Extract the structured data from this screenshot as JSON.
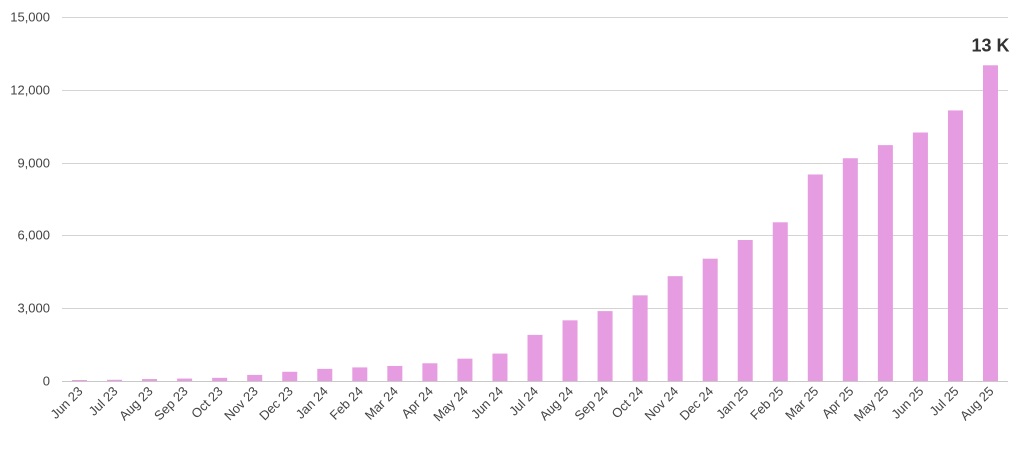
{
  "chart_data": {
    "type": "bar",
    "title": "",
    "xlabel": "",
    "ylabel": "",
    "ylim": [
      0,
      15000
    ],
    "yticks": [
      0,
      3000,
      6000,
      9000,
      12000,
      15000
    ],
    "ytick_labels": [
      "0",
      "3,000",
      "6,000",
      "9,000",
      "12,000",
      "15,000"
    ],
    "grid": true,
    "legend": "none",
    "bar_color": "#e59ce0",
    "categories": [
      "Jun 23",
      "Jul 23",
      "Aug 23",
      "Sep 23",
      "Oct 23",
      "Nov 23",
      "Dec 23",
      "Jan 24",
      "Feb 24",
      "Mar 24",
      "Apr 24",
      "May 24",
      "Jun 24",
      "Jul 24",
      "Aug 24",
      "Sep 24",
      "Oct 24",
      "Nov 24",
      "Dec 24",
      "Jan 25",
      "Feb 25",
      "Mar 25",
      "Apr 25",
      "May 25",
      "Jun 25",
      "Jul 25",
      "Aug 25"
    ],
    "values": [
      40,
      50,
      80,
      100,
      130,
      250,
      380,
      500,
      560,
      620,
      730,
      920,
      1130,
      1900,
      2500,
      2880,
      3530,
      4320,
      5040,
      5810,
      6540,
      8510,
      9180,
      9720,
      10240,
      11150,
      13010
    ],
    "annotations": [
      {
        "category": "Aug 25",
        "text": "13 K"
      }
    ]
  }
}
